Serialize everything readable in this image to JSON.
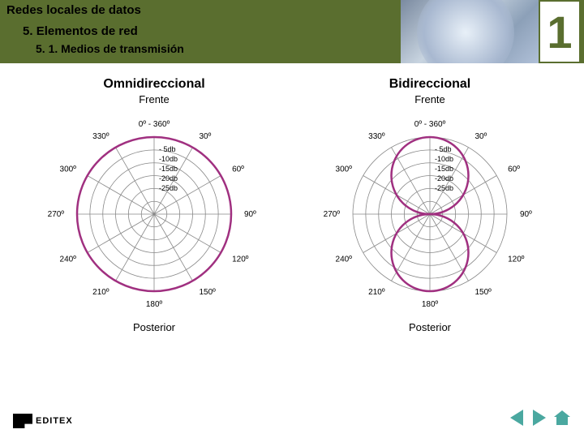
{
  "header": {
    "title": "Redes locales de datos",
    "section_num": "5.",
    "section_text": "Elementos de red",
    "subsection": "5. 1. Medios de transmisión",
    "bg_color": "#5a6e2f",
    "page_number": "1"
  },
  "charts": {
    "grid_color": "#888888",
    "pattern_color": "#a03080",
    "radius": 95,
    "angles": [
      0,
      30,
      60,
      90,
      120,
      150,
      180,
      210,
      240,
      270,
      300,
      330
    ],
    "angle_labels": [
      "0º - 360º",
      "30º",
      "60º",
      "90º",
      "120º",
      "150º",
      "180º",
      "210º",
      "240º",
      "270º",
      "300º",
      "330º"
    ],
    "db_rings": [
      1.0,
      0.833,
      0.666,
      0.5,
      0.333,
      0.166
    ],
    "db_labels": [
      "- 5db",
      "-10db",
      "-15db",
      "-20db",
      "-25db"
    ],
    "left": {
      "title": "Omnidireccional",
      "subtitle_top": "Frente",
      "subtitle_bottom": "Posterior",
      "pattern_type": "circle",
      "pattern_radius": 1.0
    },
    "right": {
      "title": "Bidireccional",
      "subtitle_top": "Frente",
      "subtitle_bottom": "Posterior",
      "pattern_type": "figure8",
      "lobe_radius": 0.5
    }
  },
  "footer": {
    "logo_text": "EDITEX",
    "nav_color": "#4aa8a0"
  }
}
